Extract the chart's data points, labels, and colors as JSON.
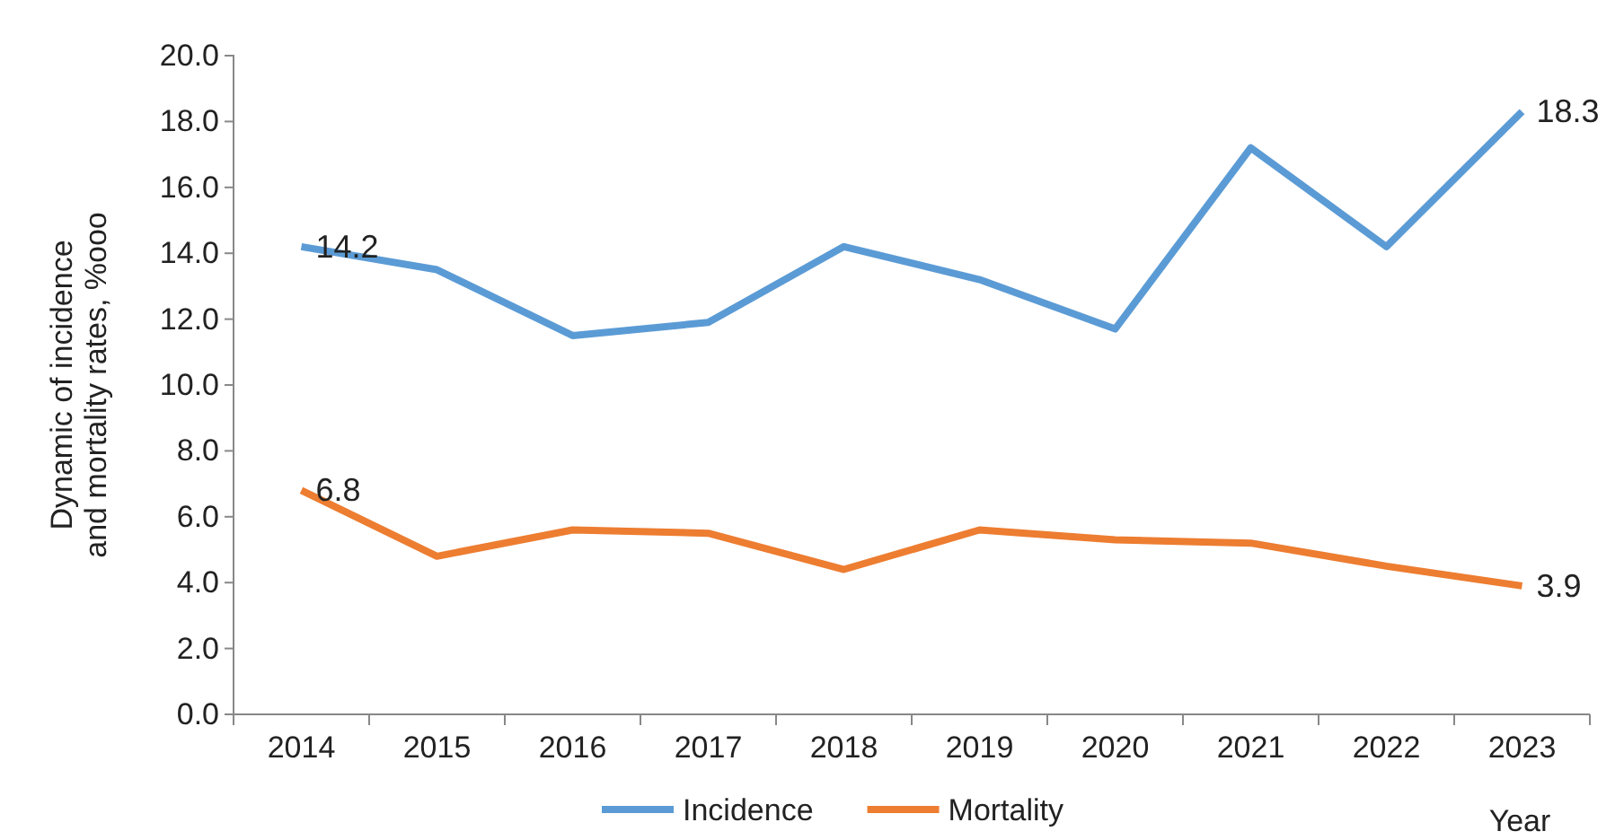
{
  "chart_data": {
    "type": "line",
    "ylabel": "Dynamic of incidence and mortality rates, %ooo",
    "xlabel": "Year",
    "categories": [
      "2014",
      "2015",
      "2016",
      "2017",
      "2018",
      "2019",
      "2020",
      "2021",
      "2022",
      "2023"
    ],
    "ylim": [
      0,
      20
    ],
    "yticks": [
      {
        "value": 0,
        "label": "0.0"
      },
      {
        "value": 2,
        "label": "2.0"
      },
      {
        "value": 4,
        "label": "4.0"
      },
      {
        "value": 6,
        "label": "6.0"
      },
      {
        "value": 8,
        "label": "8.0"
      },
      {
        "value": 10,
        "label": "10.0"
      },
      {
        "value": 12,
        "label": "12.0"
      },
      {
        "value": 14,
        "label": "14.0"
      },
      {
        "value": 16,
        "label": "16.0"
      },
      {
        "value": 18,
        "label": "18.0"
      },
      {
        "value": 20,
        "label": "20.0"
      }
    ],
    "series": [
      {
        "name": "Incidence",
        "color": "#5b9bd5",
        "values": [
          14.2,
          13.5,
          11.5,
          11.9,
          14.2,
          13.2,
          11.7,
          17.2,
          14.2,
          18.3
        ],
        "value_labels": [
          "14.2",
          null,
          null,
          null,
          null,
          null,
          null,
          null,
          null,
          "18.3"
        ]
      },
      {
        "name": "Mortality",
        "color": "#ed7d31",
        "values": [
          6.8,
          4.8,
          5.6,
          5.5,
          4.4,
          5.6,
          5.3,
          5.2,
          4.5,
          3.9
        ],
        "value_labels": [
          "6.8",
          null,
          null,
          null,
          null,
          null,
          null,
          null,
          null,
          "3.9"
        ]
      }
    ],
    "grid": false,
    "legend": "bottom",
    "marker": "none",
    "line_style": "solid"
  }
}
